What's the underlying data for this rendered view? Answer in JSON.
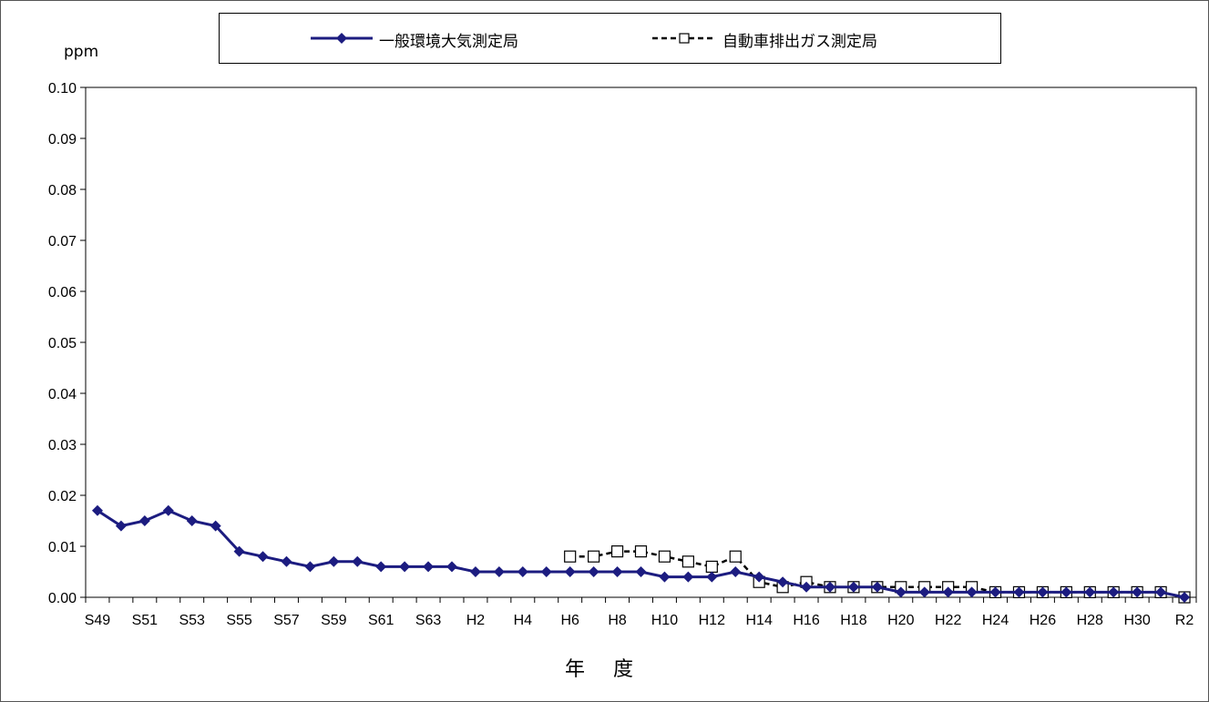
{
  "chart_data": {
    "type": "line",
    "title": "",
    "xlabel": "年 度",
    "ylabel": "ppm",
    "ylim": [
      0,
      0.1
    ],
    "yticks": [
      "0.00",
      "0.01",
      "0.02",
      "0.03",
      "0.04",
      "0.05",
      "0.06",
      "0.07",
      "0.08",
      "0.09",
      "0.10"
    ],
    "categories": [
      "S49",
      "S50",
      "S51",
      "S52",
      "S53",
      "S54",
      "S55",
      "S56",
      "S57",
      "S58",
      "S59",
      "S60",
      "S61",
      "S62",
      "S63",
      "H1",
      "H2",
      "H3",
      "H4",
      "H5",
      "H6",
      "H7",
      "H8",
      "H9",
      "H10",
      "H11",
      "H12",
      "H13",
      "H14",
      "H15",
      "H16",
      "H17",
      "H18",
      "H19",
      "H20",
      "H21",
      "H22",
      "H23",
      "H24",
      "H25",
      "H26",
      "H27",
      "H28",
      "H29",
      "H30",
      "R1",
      "R2"
    ],
    "xtick_labels": [
      "S49",
      "S51",
      "S53",
      "S55",
      "S57",
      "S59",
      "S61",
      "S63",
      "H2",
      "H4",
      "H6",
      "H8",
      "H10",
      "H12",
      "H14",
      "H16",
      "H18",
      "H20",
      "H22",
      "H24",
      "H26",
      "H28",
      "H30",
      "R2"
    ],
    "legend_position": "top",
    "series": [
      {
        "name": "一般環境大気測定局",
        "color": "#1c1c80",
        "marker": "diamond",
        "line_style": "solid",
        "values": [
          0.017,
          0.014,
          0.015,
          0.017,
          0.015,
          0.014,
          0.009,
          0.008,
          0.007,
          0.006,
          0.007,
          0.007,
          0.006,
          0.006,
          0.006,
          0.006,
          0.005,
          0.005,
          0.005,
          0.005,
          0.005,
          0.005,
          0.005,
          0.005,
          0.004,
          0.004,
          0.004,
          0.005,
          0.004,
          0.003,
          0.002,
          0.002,
          0.002,
          0.002,
          0.001,
          0.001,
          0.001,
          0.001,
          0.001,
          0.001,
          0.001,
          0.001,
          0.001,
          0.001,
          0.001,
          0.001,
          0.0
        ]
      },
      {
        "name": "自動車排出ガス測定局",
        "color": "#000000",
        "marker": "square-open",
        "line_style": "dashed",
        "values": [
          null,
          null,
          null,
          null,
          null,
          null,
          null,
          null,
          null,
          null,
          null,
          null,
          null,
          null,
          null,
          null,
          null,
          null,
          null,
          null,
          0.008,
          0.008,
          0.009,
          0.009,
          0.008,
          0.007,
          0.006,
          0.008,
          0.003,
          0.002,
          0.003,
          0.002,
          0.002,
          0.002,
          0.002,
          0.002,
          0.002,
          0.002,
          0.001,
          0.001,
          0.001,
          0.001,
          0.001,
          0.001,
          0.001,
          0.001,
          0.0
        ]
      }
    ]
  }
}
